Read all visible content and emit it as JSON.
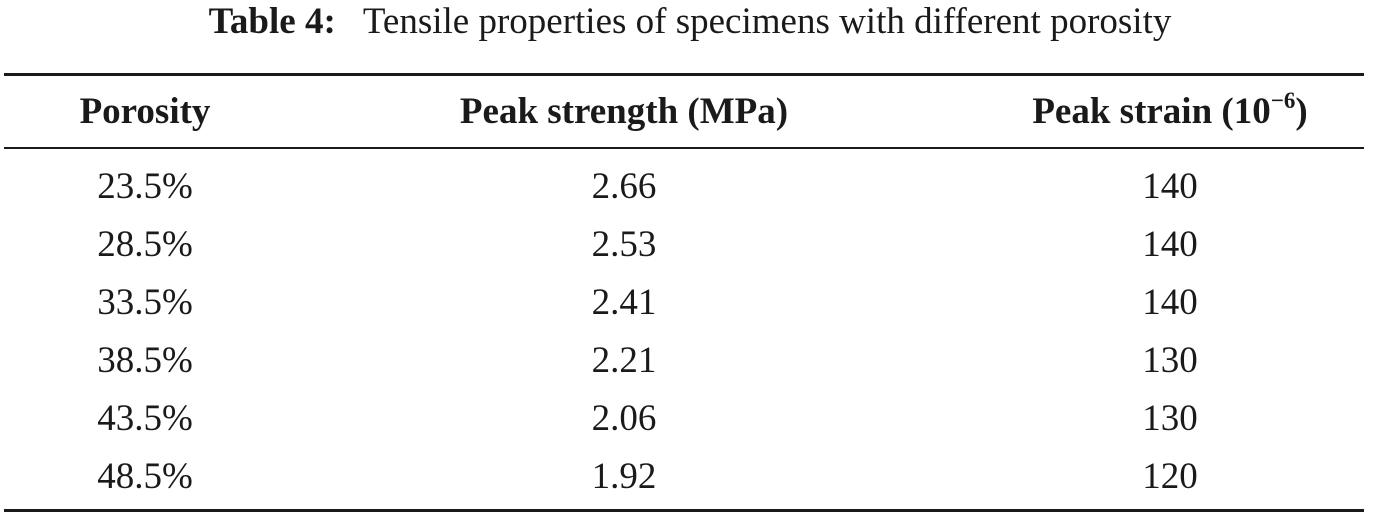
{
  "table": {
    "caption_label": "Table 4:",
    "caption_text": "Tensile properties of specimens with different porosity",
    "headers": [
      {
        "text": "Porosity",
        "sup": ""
      },
      {
        "text": "Peak strength (MPa)",
        "sup": ""
      },
      {
        "text": "Peak strain (10",
        "sup": "−6",
        "suffix": ")"
      }
    ],
    "rows": [
      [
        "23.5%",
        "2.66",
        "140"
      ],
      [
        "28.5%",
        "2.53",
        "140"
      ],
      [
        "33.5%",
        "2.41",
        "140"
      ],
      [
        "38.5%",
        "2.21",
        "130"
      ],
      [
        "43.5%",
        "2.06",
        "130"
      ],
      [
        "48.5%",
        "1.92",
        "120"
      ]
    ]
  }
}
